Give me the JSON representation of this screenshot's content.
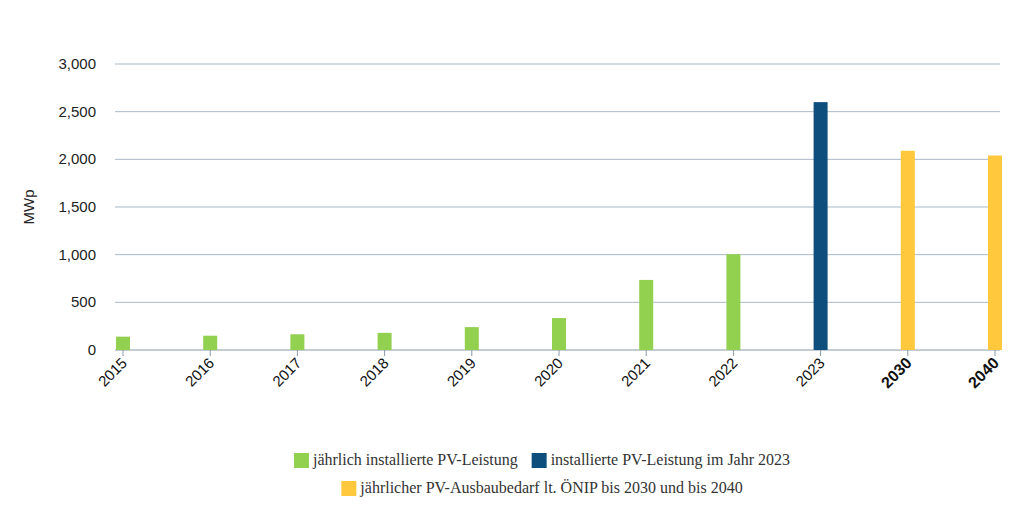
{
  "chart_data": {
    "type": "bar",
    "y_label": "MWp",
    "categories": [
      "2015",
      "2016",
      "2017",
      "2018",
      "2019",
      "2020",
      "2021",
      "2022",
      "2023",
      "2030",
      "2040"
    ],
    "series": [
      {
        "name": "jährlich installierte PV-Leistung",
        "color": "#92d050",
        "values": [
          140,
          150,
          165,
          180,
          240,
          335,
          735,
          1005,
          null,
          null,
          null
        ]
      },
      {
        "name": "installierte PV-Leistung im Jahr 2023",
        "color": "#0d4e7c",
        "values": [
          null,
          null,
          null,
          null,
          null,
          null,
          null,
          null,
          2600,
          null,
          null
        ]
      },
      {
        "name": "jährlicher PV-Ausbaubedarf lt. ÖNIP bis 2030 und bis 2040",
        "color": "#ffc83d",
        "values": [
          null,
          null,
          null,
          null,
          null,
          null,
          null,
          null,
          null,
          2090,
          2040
        ]
      }
    ],
    "ylim": [
      0,
      3000
    ],
    "yticks": [
      0,
      500,
      {
        "value": 1000,
        "label": "1,000"
      },
      {
        "value": 1500,
        "label": "1,500"
      },
      {
        "value": 2000,
        "label": "2,000"
      },
      {
        "value": 2500,
        "label": "2,500"
      },
      {
        "value": 3000,
        "label": "3,000"
      }
    ],
    "grid": true,
    "legend": "bottom"
  }
}
